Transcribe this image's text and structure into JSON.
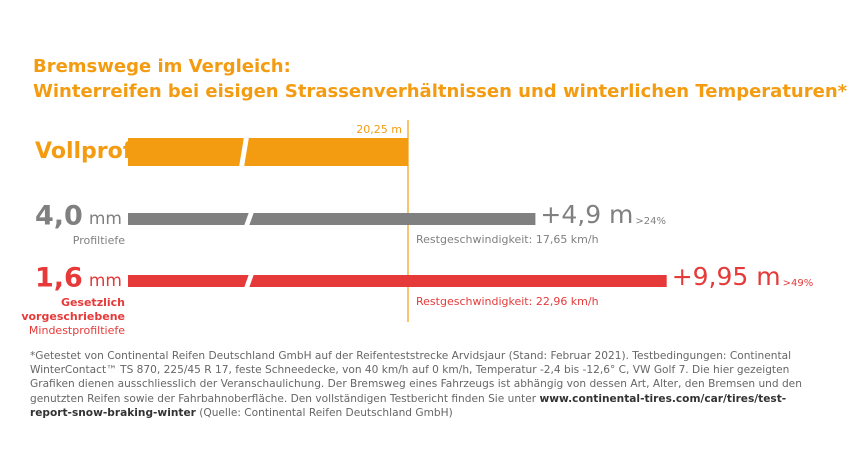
{
  "chart_data": {
    "type": "broken-bar",
    "title": "Bremswege im Vergleich:",
    "subtitle": "Winterreifen bei eisigen Strassenverhältnissen und winterlichen Temperaturen*",
    "rows": [
      {
        "label": "Vollprofil",
        "value": 20.25,
        "value_label": "20,25 m",
        "color": "#f39c12"
      },
      {
        "label": "4,0",
        "unit": "mm",
        "note": "Profiltiefe",
        "value": 4.9,
        "value_label": "+4,9 m",
        "share": ">24%",
        "speed": "Restgeschwindigkeit: 17,65 km/h",
        "color": "#808080"
      },
      {
        "label": "1,6",
        "unit": "mm",
        "note_lines": [
          "Gesetzlich",
          "vorgeschriebene"
        ],
        "note": "Mindestprofiltiefe",
        "value": 9.95,
        "value_label": "+9,95 m",
        "share": ">49%",
        "speed": "Restgeschwindigkeit: 22,96 km/h",
        "color": "#e63a3a"
      }
    ],
    "footnote": {
      "text": "*Getestet von Continental Reifen Deutschland GmbH auf der Reifenteststrecke Arvidsjaur (Stand: Februar 2021). Testbedingungen: Continental WinterContact™ TS 870, 225/45 R 17, feste Schneedecke, von 40 km/h auf 0 km/h, Temperatur -2,4 bis -12,6° C, VW Golf 7. Die hier gezeigten Grafiken dienen ausschliesslich der Veranschaulichung. Der Bremsweg eines Fahrzeugs ist abhängig von dessen Art, Alter, den Bremsen und den genutzten Reifen sowie der Fahrbahnoberfläche. Den vollständigen Testbericht finden Sie unter ",
      "link": "www.continental-tires.com/car/tires/test-report-snow-braking-winter",
      "source": " (Quelle: Continental Reifen Deutschland GmbH)"
    }
  }
}
